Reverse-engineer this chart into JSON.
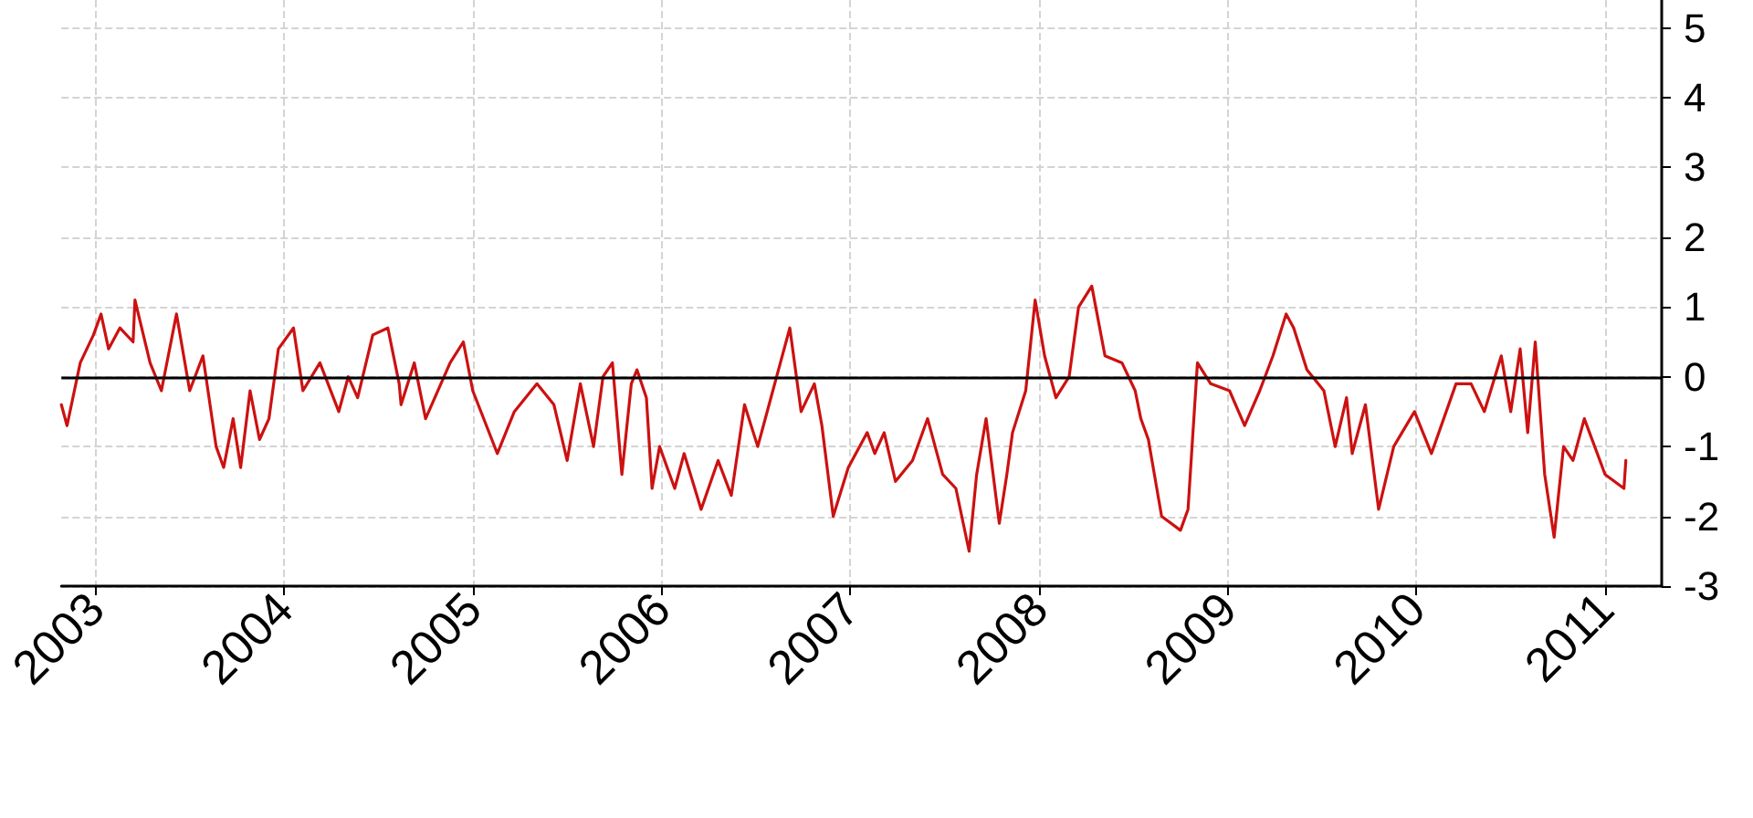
{
  "chart_data": {
    "type": "line",
    "x": [
      2002.82,
      2002.85,
      2002.92,
      2002.99,
      2003.03,
      2003.07,
      2003.13,
      2003.2,
      2003.21,
      2003.29,
      2003.35,
      2003.43,
      2003.5,
      2003.57,
      2003.64,
      2003.68,
      2003.73,
      2003.77,
      2003.82,
      2003.87,
      2003.92,
      2003.97,
      2004.05,
      2004.1,
      2004.19,
      2004.29,
      2004.34,
      2004.39,
      2004.47,
      2004.55,
      2004.61,
      2004.62,
      2004.69,
      2004.75,
      2004.88,
      2004.95,
      2005.0,
      2005.13,
      2005.22,
      2005.34,
      2005.43,
      2005.5,
      2005.57,
      2005.64,
      2005.69,
      2005.74,
      2005.79,
      2005.84,
      2005.87,
      2005.92,
      2005.95,
      2005.99,
      2006.07,
      2006.12,
      2006.21,
      2006.3,
      2006.37,
      2006.44,
      2006.51,
      2006.57,
      2006.63,
      2006.68,
      2006.74,
      2006.81,
      2006.85,
      2006.91,
      2006.99,
      2007.09,
      2007.13,
      2007.18,
      2007.24,
      2007.33,
      2007.41,
      2007.49,
      2007.56,
      2007.63,
      2007.67,
      2007.72,
      2007.79,
      2007.83,
      2007.86,
      2007.93,
      2007.98,
      2008.03,
      2008.09,
      2008.16,
      2008.21,
      2008.28,
      2008.35,
      2008.44,
      2008.51,
      2008.54,
      2008.58,
      2008.65,
      2008.75,
      2008.79,
      2008.84,
      2008.91,
      2009.01,
      2009.09,
      2009.17,
      2009.24,
      2009.31,
      2009.35,
      2009.42,
      2009.51,
      2009.57,
      2009.63,
      2009.66,
      2009.73,
      2009.8,
      2009.88,
      2009.99,
      2010.08,
      2010.21,
      2010.29,
      2010.36,
      2010.45,
      2010.5,
      2010.55,
      2010.59,
      2010.63,
      2010.68,
      2010.73,
      2010.78,
      2010.83,
      2010.89,
      2011.0,
      2011.1,
      2011.11
    ],
    "series": [
      {
        "color": "#cc1111",
        "values": [
          -0.4,
          -0.7,
          0.2,
          0.6,
          0.9,
          0.4,
          0.7,
          0.5,
          1.1,
          0.2,
          -0.2,
          0.9,
          -0.2,
          0.3,
          -1.0,
          -1.3,
          -0.6,
          -1.3,
          -0.2,
          -0.9,
          -0.6,
          0.4,
          0.7,
          -0.2,
          0.2,
          -0.5,
          0.0,
          -0.3,
          0.6,
          0.7,
          -0.1,
          -0.4,
          0.2,
          -0.6,
          0.2,
          0.5,
          -0.2,
          -1.1,
          -0.5,
          -0.1,
          -0.4,
          -1.2,
          -0.1,
          -1.0,
          0.0,
          0.2,
          -1.4,
          -0.1,
          0.1,
          -0.3,
          -1.6,
          -1.0,
          -1.6,
          -1.1,
          -1.9,
          -1.2,
          -1.7,
          -0.4,
          -1.0,
          -0.4,
          0.2,
          0.7,
          -0.5,
          -0.1,
          -0.7,
          -2.0,
          -1.3,
          -0.8,
          -1.1,
          -0.8,
          -1.5,
          -1.2,
          -0.6,
          -1.4,
          -1.6,
          -2.5,
          -1.4,
          -0.6,
          -2.1,
          -1.4,
          -0.8,
          -0.2,
          1.1,
          0.3,
          -0.3,
          0.0,
          1.0,
          1.3,
          0.3,
          0.2,
          -0.2,
          -0.6,
          -0.9,
          -2.0,
          -2.2,
          -1.9,
          0.2,
          -0.1,
          -0.2,
          -0.7,
          -0.2,
          0.3,
          0.9,
          0.7,
          0.1,
          -0.2,
          -1.0,
          -0.3,
          -1.1,
          -0.4,
          -1.9,
          -1.0,
          -0.5,
          -1.1,
          -0.1,
          -0.1,
          -0.5,
          0.3,
          -0.5,
          0.4,
          -0.8,
          0.5,
          -1.4,
          -2.3,
          -1.0,
          -1.2,
          -0.6,
          -1.4,
          -1.6,
          -1.2
        ]
      }
    ],
    "xlim": [
      2002.82,
      2011.3
    ],
    "xticks": [
      2003,
      2004,
      2005,
      2006,
      2007,
      2008,
      2009,
      2010,
      2011
    ],
    "ylim": [
      -3,
      5.4
    ],
    "yticks": [
      -3,
      -2,
      -1,
      0,
      1,
      2,
      3,
      4,
      5
    ],
    "ref_lines": [
      {
        "axis": "y",
        "value": 0,
        "color": "#000000"
      }
    ],
    "grid": true,
    "marker": "none",
    "line_style": "solid"
  }
}
